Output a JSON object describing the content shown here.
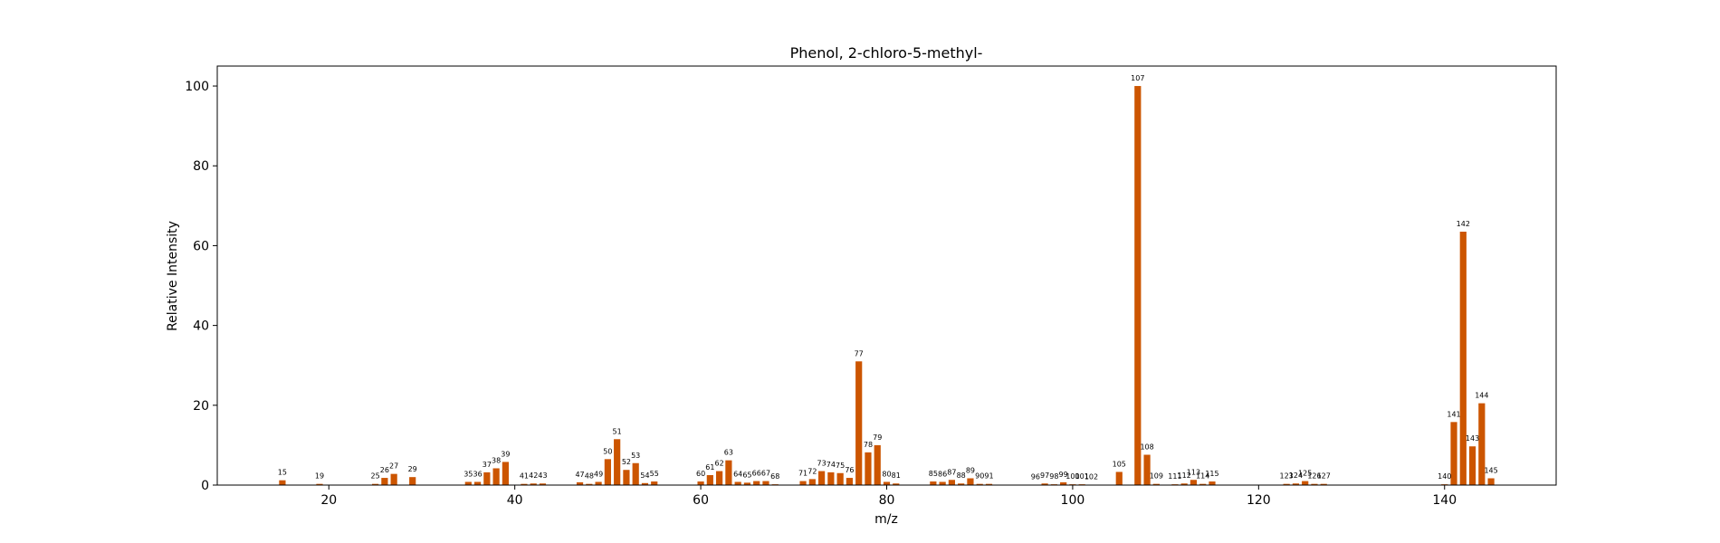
{
  "chart_data": {
    "type": "bar",
    "title": "Phenol, 2-chloro-5-methyl-",
    "xlabel": "m/z",
    "ylabel": "Relative Intensity",
    "xlim": [
      8,
      152
    ],
    "ylim": [
      0,
      105
    ],
    "xticks": [
      20,
      40,
      60,
      80,
      100,
      120,
      140
    ],
    "yticks": [
      0,
      20,
      40,
      60,
      80,
      100
    ],
    "bar_color": "#cc5500",
    "grid": false,
    "legend": "none",
    "series": [
      {
        "x": [
          15,
          19,
          25,
          26,
          27,
          29,
          35,
          36,
          37,
          38,
          39,
          41,
          42,
          43,
          47,
          48,
          49,
          50,
          51,
          52,
          53,
          54,
          55,
          60,
          61,
          62,
          63,
          64,
          65,
          66,
          67,
          68,
          71,
          72,
          73,
          74,
          75,
          76,
          77,
          78,
          79,
          80,
          81,
          85,
          86,
          87,
          88,
          89,
          90,
          91,
          96,
          97,
          98,
          99,
          100,
          101,
          102,
          105,
          107,
          108,
          109,
          111,
          112,
          113,
          114,
          115,
          123,
          124,
          125,
          126,
          127,
          140,
          141,
          142,
          143,
          144,
          145
        ],
        "y": [
          1.2,
          0.3,
          0.3,
          1.8,
          2.8,
          2.0,
          0.8,
          0.8,
          3.2,
          4.2,
          5.8,
          0.3,
          0.4,
          0.4,
          0.7,
          0.3,
          0.8,
          6.5,
          11.5,
          3.8,
          5.5,
          0.5,
          0.9,
          0.9,
          2.5,
          3.5,
          6.2,
          0.8,
          0.6,
          1.0,
          1.0,
          0.2,
          1.0,
          1.5,
          3.5,
          3.2,
          3.0,
          1.8,
          31.0,
          8.2,
          10.0,
          0.8,
          0.4,
          0.9,
          0.8,
          1.3,
          0.4,
          1.7,
          0.3,
          0.3,
          0.1,
          0.4,
          0.2,
          0.7,
          0.2,
          0.2,
          0.1,
          3.3,
          100,
          7.6,
          0.3,
          0.2,
          0.4,
          1.3,
          0.3,
          0.9,
          0.3,
          0.4,
          1.0,
          0.3,
          0.3,
          0.2,
          15.8,
          63.5,
          9.7,
          20.5,
          1.7
        ]
      }
    ]
  }
}
